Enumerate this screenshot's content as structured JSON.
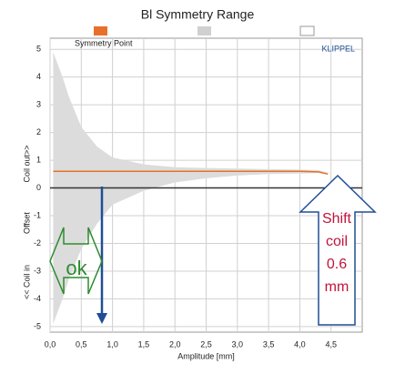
{
  "chart_data": {
    "type": "area-range",
    "title": "Bl Symmetry Range",
    "x": [
      0.05,
      0.1,
      0.2,
      0.3,
      0.5,
      0.75,
      1,
      1.5,
      2,
      2.5,
      3,
      3.5,
      4,
      4.3,
      4.45
    ],
    "series": [
      {
        "name": "Symmetry Point",
        "color": "#e8702a",
        "values": [
          0.6,
          0.6,
          0.6,
          0.6,
          0.6,
          0.6,
          0.6,
          0.6,
          0.6,
          0.6,
          0.6,
          0.6,
          0.6,
          0.58,
          0.5
        ]
      }
    ],
    "range": {
      "color": "#dcdcdc",
      "upper": [
        4.9,
        4.6,
        4.0,
        3.3,
        2.2,
        1.5,
        1.1,
        0.85,
        0.75,
        0.72,
        0.7,
        0.68,
        0.66,
        0.64,
        0.55
      ],
      "lower": [
        -4.9,
        -4.6,
        -4.0,
        -3.3,
        -2.2,
        -1.3,
        -0.6,
        -0.1,
        0.2,
        0.35,
        0.45,
        0.5,
        0.52,
        0.54,
        0.52
      ]
    },
    "xlabel": "Amplitude [mm]",
    "ylabels": [
      "Coil out>>",
      "Offset",
      "<< Coil in"
    ],
    "brand": "KLIPPEL",
    "xlim": [
      0,
      5
    ],
    "ylim": [
      -5.2,
      5.4
    ],
    "xticks": [
      {
        "value": 0,
        "label": "0,0"
      },
      {
        "value": 0.5,
        "label": "0,5"
      },
      {
        "value": 1,
        "label": "1,0"
      },
      {
        "value": 1.5,
        "label": "1,5"
      },
      {
        "value": 2,
        "label": "2,0"
      },
      {
        "value": 2.5,
        "label": "2,5"
      },
      {
        "value": 3,
        "label": "3,0"
      },
      {
        "value": 3.5,
        "label": "3,5"
      },
      {
        "value": 4,
        "label": "4,0"
      },
      {
        "value": 4.5,
        "label": "4,5"
      }
    ],
    "yticks": [
      5,
      4,
      3,
      2,
      1,
      0,
      -1,
      -2,
      -3,
      -4,
      -5
    ],
    "grid": true,
    "annotations": {
      "ok": "ok",
      "shift": [
        "Shift",
        "coil",
        "0.6",
        "mm"
      ]
    }
  }
}
